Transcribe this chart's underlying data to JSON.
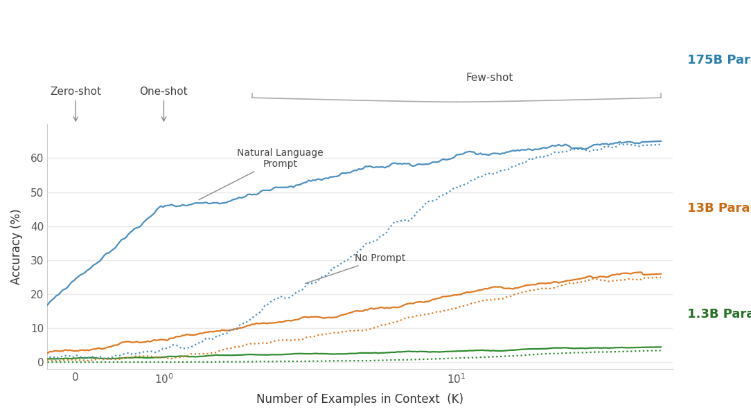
{
  "xlabel": "Number of Examples in Context  (K)",
  "ylabel": "Accuracy (%)",
  "background_color": "#ffffff",
  "colors": {
    "blue": "#4a8fc0",
    "orange": "#e07820",
    "green": "#2e8b2e"
  },
  "label_colors": {
    "175B": "#2a7fb0",
    "13B": "#cc6a10",
    "1.3B": "#267026"
  },
  "ylim": [
    -2,
    70
  ],
  "yticks": [
    0,
    10,
    20,
    30,
    40,
    50,
    60
  ],
  "annotation_color": "#888888",
  "text_color": "#444444"
}
